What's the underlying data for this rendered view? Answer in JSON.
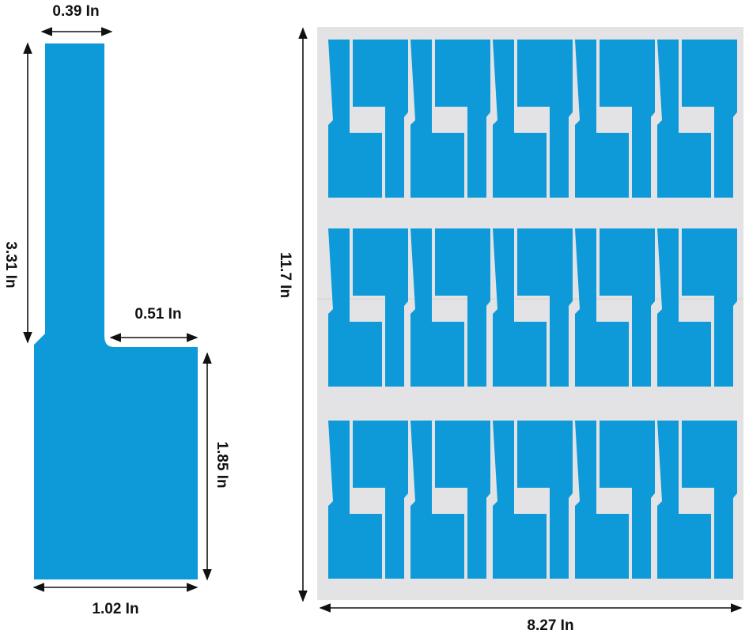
{
  "label_dimensions": {
    "top_width": "0.39 In",
    "total_height": "3.31 In",
    "step_width": "0.51 In",
    "bottom_height": "1.85 In",
    "bottom_width": "1.02 In"
  },
  "sheet_dimensions": {
    "height": "11.7 In",
    "width": "8.27 In"
  },
  "sheet_layout": {
    "rows": 3,
    "pairs_per_row": 5
  },
  "colors": {
    "label_blue": "#0e9ad9",
    "sheet_background": "#e3e3e6",
    "dimension_text": "#111111"
  }
}
